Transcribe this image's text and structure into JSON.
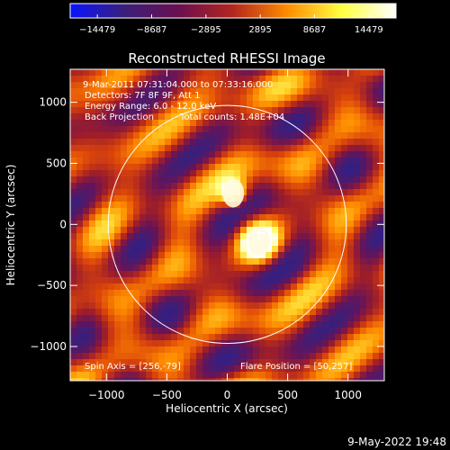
{
  "colorbar": {
    "ticks": [
      "−14479",
      "−8687",
      "−2895",
      "2895",
      "8687",
      "14479"
    ],
    "colors": [
      "#0a14ff",
      "#3a1f7a",
      "#6b0f4f",
      "#b3261e",
      "#ff8c00",
      "#ffff40",
      "#ffffff"
    ]
  },
  "plot": {
    "title": "Reconstructed RHESSI Image",
    "xlabel": "Heliocentric X (arcsec)",
    "ylabel": "Heliocentric Y (arcsec)"
  },
  "annotations": {
    "time_range": "9-Mar-2011 07:31:04.000 to 07:33:16.000",
    "detectors": "Detectors: 7F 8F 9F, Att 1",
    "energy": "Energy Range: 6.0 - 12.0 keV",
    "method": "Back Projection",
    "counts": "Total counts: 1.48E+04",
    "spin_axis": "Spin Axis = [256,-79]",
    "flare_position": "Flare Position = [50,257]"
  },
  "footer": {
    "timestamp": "9-May-2022 19:48"
  },
  "chart_data": {
    "type": "heatmap",
    "title": "Reconstructed RHESSI Image",
    "xlabel": "Heliocentric X (arcsec)",
    "ylabel": "Heliocentric Y (arcsec)",
    "xlim": [
      -1300,
      1300
    ],
    "ylim": [
      -1280,
      1270
    ],
    "xticks": [
      -1000,
      -500,
      0,
      500,
      1000
    ],
    "yticks": [
      -1000,
      -500,
      0,
      500,
      1000
    ],
    "xtick_labels": [
      "−1000",
      "−500",
      "0",
      "500",
      "1000"
    ],
    "ytick_labels": [
      "−1000",
      "−500",
      "0",
      "500",
      "1000"
    ],
    "zrange": [
      -14479,
      14479
    ],
    "solar_limb_radius": 985,
    "sources": [
      {
        "x": 265,
        "y": -140,
        "value": 14479
      },
      {
        "x": 50,
        "y": 257,
        "value": 11000
      }
    ],
    "marker": {
      "x": 265,
      "y": -70
    }
  }
}
